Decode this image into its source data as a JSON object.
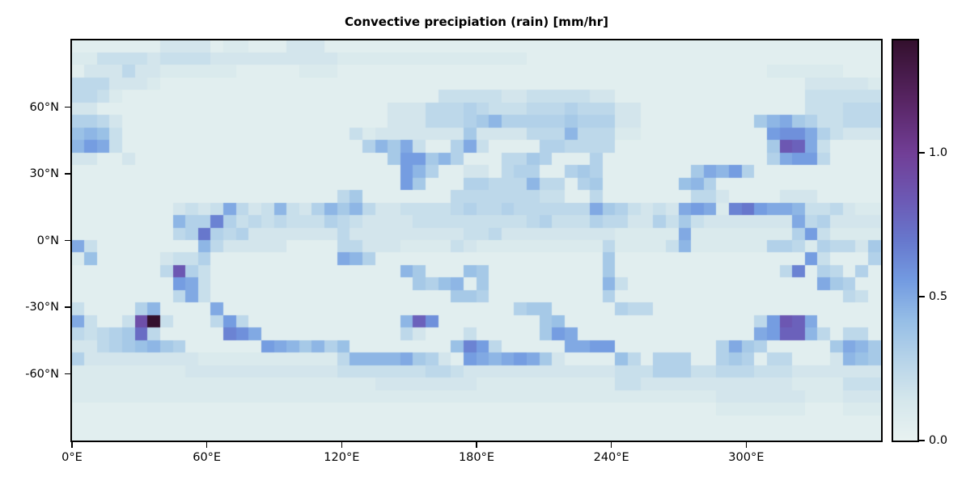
{
  "title": "Convective precipiation (rain) [mm/hr]",
  "chart_data": {
    "type": "heatmap",
    "title": "Convective precipiation (rain) [mm/hr]",
    "grid_on": false,
    "extent": {
      "lon": [
        0,
        360
      ],
      "lat": [
        90,
        -90
      ]
    },
    "axes": {
      "x_ticks": [
        {
          "label": "0°E",
          "lon": 0
        },
        {
          "label": "60°E",
          "lon": 60
        },
        {
          "label": "120°E",
          "lon": 120
        },
        {
          "label": "180°E",
          "lon": 180
        },
        {
          "label": "240°E",
          "lon": 240
        },
        {
          "label": "300°E",
          "lon": 300
        }
      ],
      "y_ticks": [
        {
          "label": "60°N",
          "lat": 60
        },
        {
          "label": "30°N",
          "lat": 30
        },
        {
          "label": "0°N",
          "lat": 0
        },
        {
          "label": "-30°N",
          "lat": -30
        },
        {
          "label": "-60°N",
          "lat": -60
        }
      ]
    },
    "colorbar": {
      "vmin": 0.0,
      "vmax": 1.39,
      "ticks": [
        {
          "label": "0.0",
          "value": 0.0
        },
        {
          "label": "0.5",
          "value": 0.5
        },
        {
          "label": "1.0",
          "value": 1.0
        }
      ],
      "orientation": "vertical",
      "position": "right"
    },
    "colormap": {
      "name": "cmocean-dense-like",
      "stops": [
        [
          0.0,
          232,
          242,
          241
        ],
        [
          0.1,
          213,
          231,
          236
        ],
        [
          0.2,
          183,
          212,
          233
        ],
        [
          0.3,
          150,
          190,
          230
        ],
        [
          0.4,
          115,
          155,
          225
        ],
        [
          0.5,
          103,
          120,
          205
        ],
        [
          0.6,
          108,
          90,
          181
        ],
        [
          0.72,
          113,
          62,
          150
        ],
        [
          0.85,
          88,
          37,
          100
        ],
        [
          1.0,
          52,
          16,
          46
        ]
      ]
    },
    "grid": {
      "cols": 64,
      "rows": 32,
      "encoding": "each char is a base-36 digit; value_mm_hr = digit * 0.05; rows ordered north to south, cols west to east from 0°E",
      "max_cell_value": 1.39,
      "rows_data": [
        "1111111333312211133311111111111111111111111111111111111111111111",
        "2244443444433333333332222222222222221111111111111111111111111111",
        "1333533222222111112221111111111111111111111111111111111222222111",
        "5553332111111111111111111111111111111111111111111111111111333332",
        "5542111111111111111111111111144444334444433111111111111111444444",
        "3311111111111111111111111333555654445556555331111111111111444555",
        "6653111111111111111111111333555679666667666331111111117 9a7644555",
        "8984111111111111111111423333333733335559555221111111111bcca64333",
        "9ba4111111111111111111169 7a4116a41111665555111111111111 7hga41111",
        "3311311111111111111111111 7bb7961115576111611111111111116abb51111111",
        "11111111111111111111111111b96113315661167611111117a9b61111111111",
        "11111111111111111111111111b71116655595516711111189611111111111111",
        "1111111111111111111115711111115555555441151111111553111133311111 1",
        "111111113434a534943697953344445655655555 5a764343aba2debaa9445322",
        "11111111966d645454446543333444444444564446553364743333333a563333",
        "1111111156e65633333335333333333445333333333222 22a222222226b42222",
        "a411111111953333311115533322224322222222225222249222222665265537",
        "2811111344611111111 11a961111111111111111117111111111111111b411166",
        "11111115h641111111111111119711187111111111711111111111115d16516",
        "11111111ba4111111111111111176891711111111194111111111111111a76119",
        "111111115a4111111111111111111177611111111161111111111111111 11541",
        "4111169111 1a1111111111111111111111167711111655111111111111111111 4",
        "a4114is41115b51111111111119gc11111111781111111111111115bhga111111",
        "54567f511111dca1111111111153111411111 7ba11111111111111abgg951551",
        "33567897611111 1ba9796811111111 8db511111aabb111111116a76111117a97",
        "6333333333222222222225 9999a7631ba9aba73111185 1666116761 55111398 7",
        "2222222223333333333334444444554333333333333444666445554443333333",
        "2222222222222222222222223333333322222222222443333333333332222444",
        "2222222222222222222222222222222222222222222222222223333333222333",
        "1111111111111111111111111111111111111111111111111112222222111222",
        "1111111111111111111111111111111111111111111111111111111111111111",
        "1111111111111111111111111111111111111111111111111111111111111111"
      ]
    }
  },
  "layout_labels": {
    "figure_role": "matplotlib-style pcolormesh world map with vertical colorbar"
  }
}
